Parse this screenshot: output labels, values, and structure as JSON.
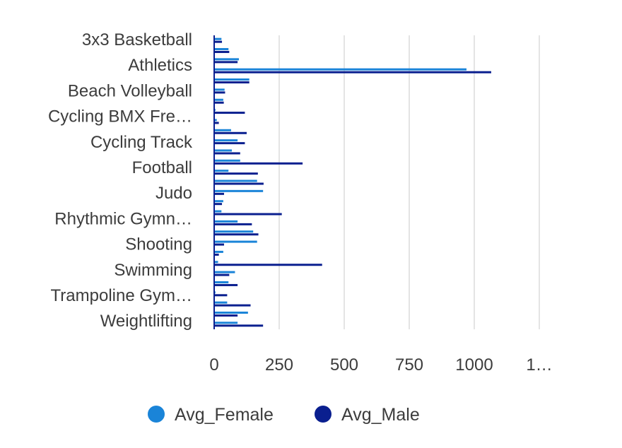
{
  "chart_data": {
    "type": "bar",
    "orientation": "horizontal",
    "visible_category_labels": [
      "3x3 Basketball",
      "Athletics",
      "Beach Volleyball",
      "Cycling BMX Fre…",
      "Cycling Track",
      "Football",
      "Judo",
      "Rhythmic Gymn…",
      "Shooting",
      "Swimming",
      "Trampoline Gym…",
      "Weightlifting"
    ],
    "x_ticks": [
      "0",
      "250",
      "500",
      "750",
      "1000",
      "1…"
    ],
    "xlim": [
      0,
      1250
    ],
    "grid": true,
    "legend_position": "bottom",
    "series": [
      {
        "name": "Avg_Female",
        "color": "#1a84d8",
        "values": [
          28,
          55,
          95,
          970,
          135,
          40,
          35,
          5,
          10,
          65,
          90,
          68,
          100,
          55,
          165,
          188,
          35,
          28,
          90,
          150,
          165,
          35,
          15,
          80,
          55,
          5,
          50,
          130,
          90
        ]
      },
      {
        "name": "Avg_Male",
        "color": "#0a1f8f",
        "values": [
          30,
          58,
          90,
          1065,
          135,
          42,
          37,
          118,
          18,
          125,
          118,
          100,
          340,
          168,
          190,
          38,
          30,
          260,
          145,
          170,
          38,
          18,
          415,
          58,
          90,
          50,
          140,
          90,
          188
        ]
      }
    ]
  },
  "legend": {
    "female_label": "Avg_Female",
    "male_label": "Avg_Male",
    "female_color": "#1a84d8",
    "male_color": "#0a1f8f"
  }
}
